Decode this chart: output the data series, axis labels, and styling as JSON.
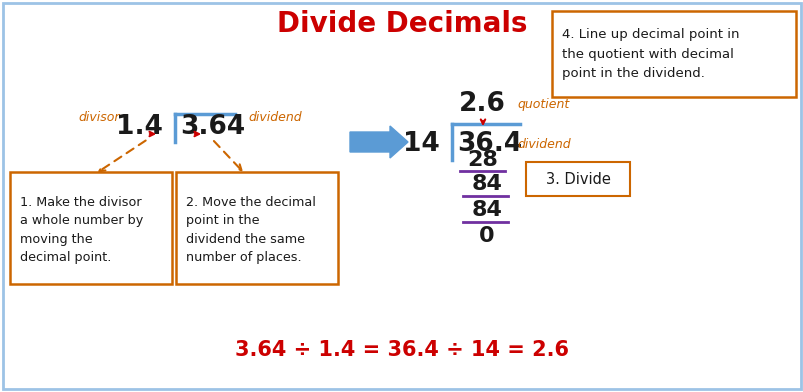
{
  "title": "Divide Decimals",
  "title_color": "#CC0000",
  "title_fontsize": 20,
  "box1_text": "1. Make the divisor\na whole number by\nmoving the\ndecimal point.",
  "box2_text": "2. Move the decimal\npoint in the\ndividend the same\nnumber of places.",
  "box4_text": "4. Line up decimal point in\nthe quotient with decimal\npoint in the dividend.",
  "box3_text": "3. Divide",
  "orange_color": "#CC6600",
  "blue_color": "#5B9BD5",
  "red_color": "#CC0000",
  "purple_color": "#7030A0",
  "black_color": "#1A1A1A",
  "border_color": "#9DC3E6",
  "bottom_eq": "3.64 ÷ 1.4 = 36.4 ÷ 14 = 2.6"
}
